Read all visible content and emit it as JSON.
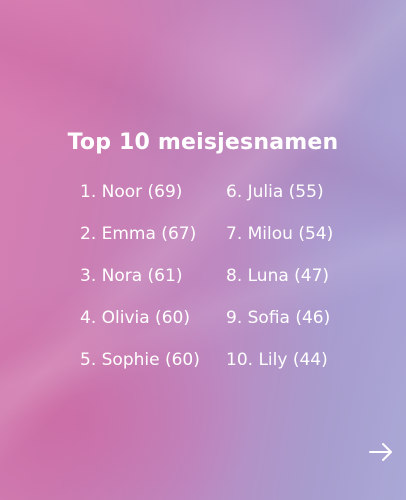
{
  "title": "Top 10 meisjesnamen",
  "names_left": [
    "1. Noor (69)",
    "2. Emma (67)",
    "3. Nora (61)",
    "4. Olivia (60)",
    "5. Sophie (60)"
  ],
  "names_right": [
    "6. Julia (55)",
    "7. Milou (54)",
    "8. Luna (47)",
    "9. Sofia (46)",
    "10. Lily (44)"
  ],
  "icons": {
    "next": "arrow-right-icon"
  },
  "colors": {
    "text": "#ffffff",
    "gradient_left": "#d67fb3",
    "gradient_right": "#a9a8d6"
  }
}
